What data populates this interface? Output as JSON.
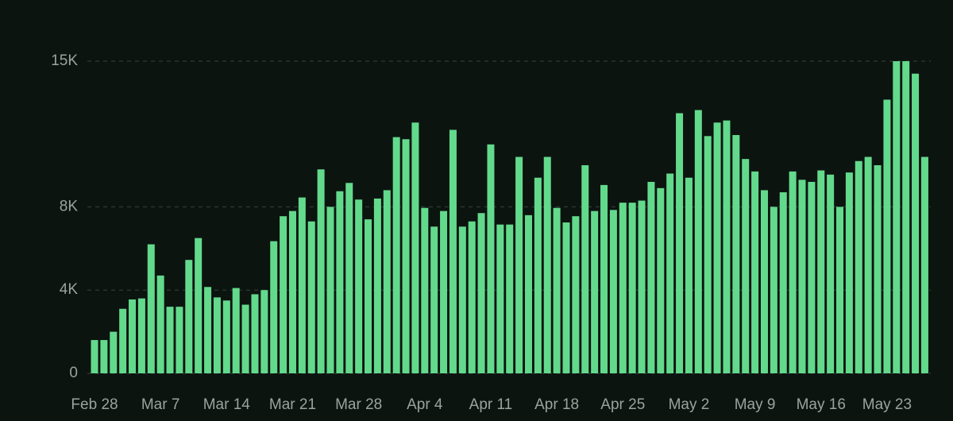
{
  "chart_data": {
    "type": "bar",
    "categories": [
      "Feb 28",
      null,
      null,
      null,
      null,
      null,
      null,
      "Mar 7",
      null,
      null,
      null,
      null,
      null,
      null,
      "Mar 14",
      null,
      null,
      null,
      null,
      null,
      null,
      "Mar 21",
      null,
      null,
      null,
      null,
      null,
      null,
      "Mar 28",
      null,
      null,
      null,
      null,
      null,
      null,
      "Apr 4",
      null,
      null,
      null,
      null,
      null,
      null,
      "Apr 11",
      null,
      null,
      null,
      null,
      null,
      null,
      "Apr 18",
      null,
      null,
      null,
      null,
      null,
      null,
      "Apr 25",
      null,
      null,
      null,
      null,
      null,
      null,
      "May 2",
      null,
      null,
      null,
      null,
      null,
      null,
      "May 9",
      null,
      null,
      null,
      null,
      null,
      null,
      "May 16",
      null,
      null,
      null,
      null,
      null,
      null,
      "May 23",
      null,
      null,
      null,
      null
    ],
    "values": [
      1600,
      1600,
      2000,
      3100,
      3550,
      3600,
      6200,
      4700,
      3200,
      3200,
      5450,
      6500,
      4150,
      3650,
      3500,
      4100,
      3300,
      3800,
      4000,
      6350,
      7550,
      7800,
      8450,
      7300,
      9800,
      8000,
      8750,
      9150,
      8350,
      7400,
      8400,
      8800,
      11350,
      11250,
      12050,
      7950,
      7050,
      7800,
      11700,
      7050,
      7300,
      7700,
      11000,
      7150,
      7150,
      10400,
      7600,
      9400,
      10400,
      7950,
      7250,
      7550,
      10000,
      7800,
      9050,
      7850,
      8200,
      8200,
      8300,
      9200,
      8900,
      9600,
      12500,
      9400,
      12650,
      11400,
      12050,
      12150,
      11450,
      10300,
      9700,
      8800,
      8000,
      8700,
      9700,
      9300,
      9200,
      9750,
      9550,
      8000,
      9650,
      10200,
      10400,
      10000,
      13150,
      15000,
      15000,
      14400,
      10400
    ],
    "color": "#63d98c",
    "ylim": [
      0,
      15000
    ],
    "yticks": [
      0,
      {
        "value": 4000,
        "label": "4K"
      },
      {
        "value": 8000,
        "label": "8K"
      },
      {
        "value": 15000,
        "label": "15K"
      }
    ],
    "grid": true
  }
}
